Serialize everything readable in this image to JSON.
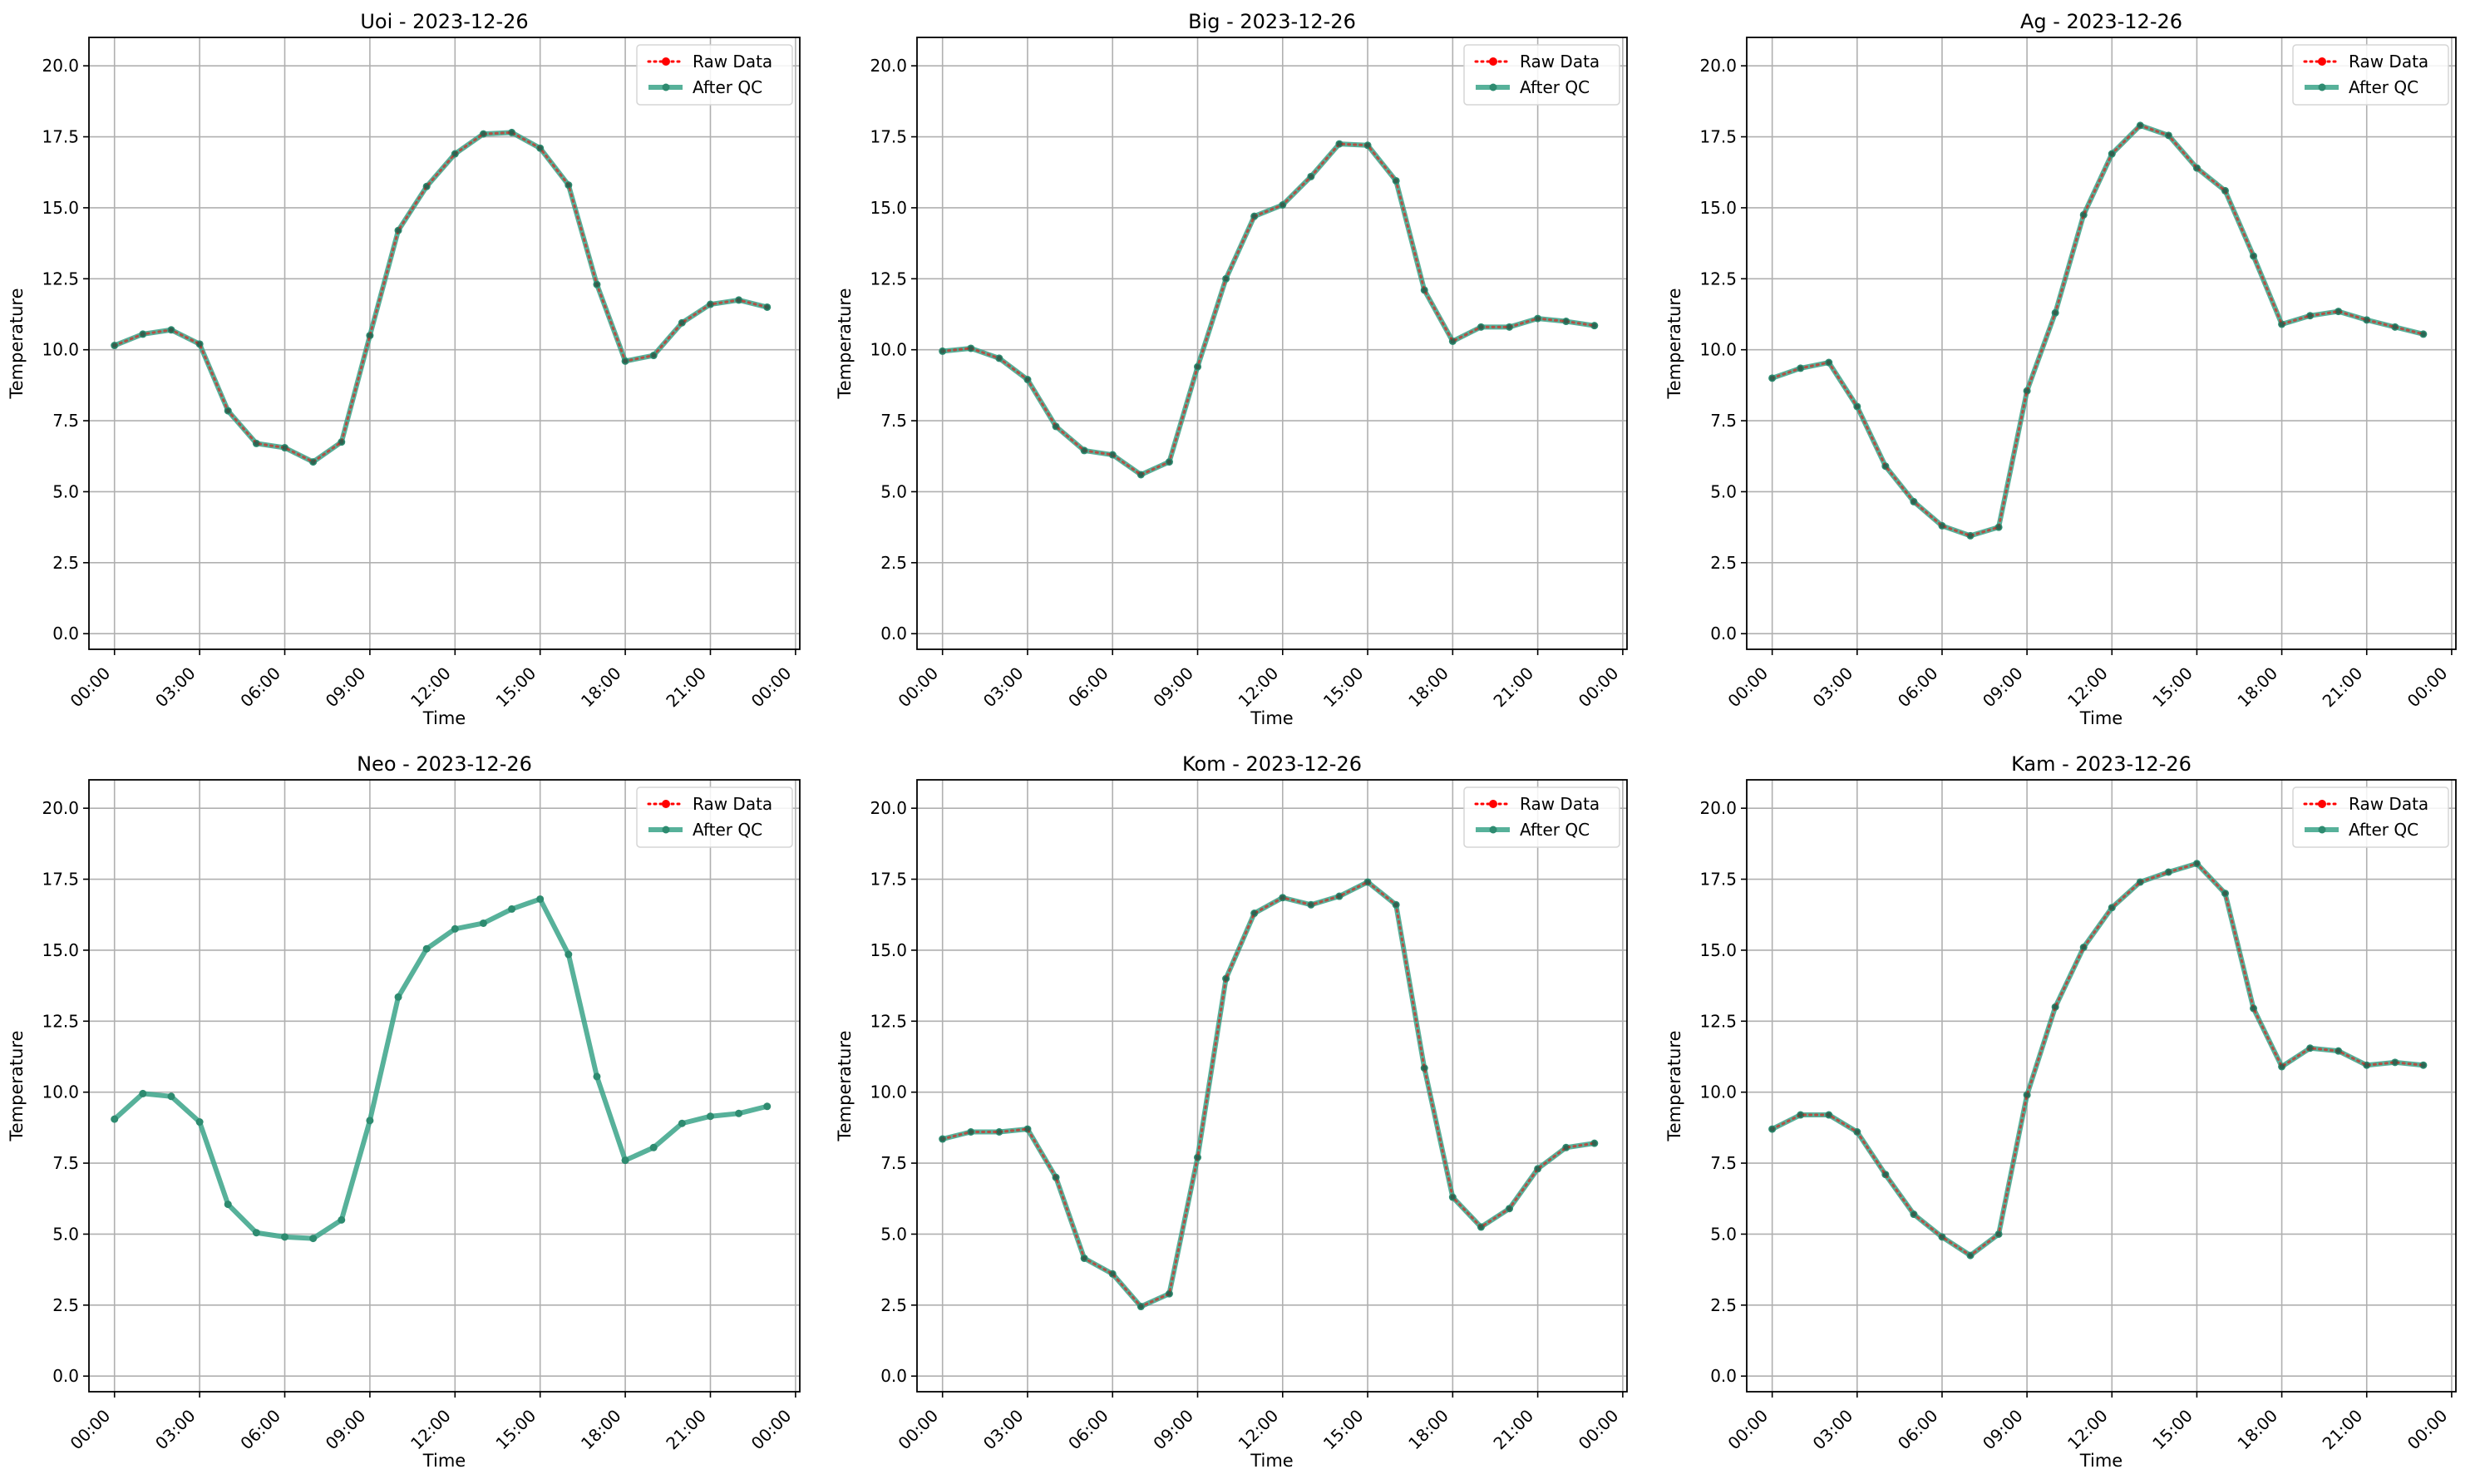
{
  "figure": {
    "background": "#ffffff"
  },
  "legend_labels": {
    "raw": "Raw Data",
    "qc": "After QC"
  },
  "styles": {
    "raw_color": "#ff0000",
    "qc_color": "#3aa388",
    "grid_color": "#b0b0b0"
  },
  "chart_data": [
    {
      "type": "line",
      "title": "Uoi - 2023-12-26",
      "xlabel": "Time",
      "ylabel": "Temperature",
      "x_ticks": [
        "00:00",
        "03:00",
        "06:00",
        "09:00",
        "12:00",
        "15:00",
        "18:00",
        "21:00",
        "00:00"
      ],
      "y_ticks": [
        "0.0",
        "2.5",
        "5.0",
        "7.5",
        "10.0",
        "12.5",
        "15.0",
        "17.5",
        "20.0"
      ],
      "xlim": [
        -0.9,
        24.15
      ],
      "ylim": [
        -0.55,
        21.0
      ],
      "grid": true,
      "legend_position": "upper right",
      "x_hours": [
        0,
        1,
        2,
        3,
        4,
        5,
        6,
        7,
        8,
        9,
        10,
        11,
        12,
        13,
        14,
        15,
        16,
        17,
        18,
        19,
        20,
        21,
        22,
        23
      ],
      "series": [
        {
          "name": "Raw Data",
          "values": [
            10.15,
            10.55,
            10.7,
            10.2,
            7.85,
            6.7,
            6.55,
            6.05,
            6.75,
            10.5,
            14.2,
            15.75,
            16.9,
            17.6,
            17.65,
            17.1,
            15.8,
            12.3,
            9.6,
            9.8,
            10.95,
            11.6,
            11.75,
            11.5
          ]
        },
        {
          "name": "After QC",
          "values": [
            10.15,
            10.55,
            10.7,
            10.2,
            7.85,
            6.7,
            6.55,
            6.05,
            6.75,
            10.5,
            14.2,
            15.75,
            16.9,
            17.6,
            17.65,
            17.1,
            15.8,
            12.3,
            9.6,
            9.8,
            10.95,
            11.6,
            11.75,
            11.5
          ]
        }
      ]
    },
    {
      "type": "line",
      "title": "Big - 2023-12-26",
      "xlabel": "Time",
      "ylabel": "Temperature",
      "x_ticks": [
        "00:00",
        "03:00",
        "06:00",
        "09:00",
        "12:00",
        "15:00",
        "18:00",
        "21:00",
        "00:00"
      ],
      "y_ticks": [
        "0.0",
        "2.5",
        "5.0",
        "7.5",
        "10.0",
        "12.5",
        "15.0",
        "17.5",
        "20.0"
      ],
      "xlim": [
        -0.9,
        24.15
      ],
      "ylim": [
        -0.55,
        21.0
      ],
      "grid": true,
      "legend_position": "upper right",
      "x_hours": [
        0,
        1,
        2,
        3,
        4,
        5,
        6,
        7,
        8,
        9,
        10,
        11,
        12,
        13,
        14,
        15,
        16,
        17,
        18,
        19,
        20,
        21,
        22,
        23
      ],
      "series": [
        {
          "name": "Raw Data",
          "values": [
            9.95,
            10.05,
            9.7,
            8.95,
            7.3,
            6.45,
            6.3,
            5.6,
            6.05,
            9.4,
            12.5,
            14.7,
            15.1,
            16.1,
            17.25,
            17.2,
            15.95,
            12.1,
            10.3,
            10.8,
            10.8,
            11.1,
            11.0,
            10.85
          ]
        },
        {
          "name": "After QC",
          "values": [
            9.95,
            10.05,
            9.7,
            8.95,
            7.3,
            6.45,
            6.3,
            5.6,
            6.05,
            9.4,
            12.5,
            14.7,
            15.1,
            16.1,
            17.25,
            17.2,
            15.95,
            12.1,
            10.3,
            10.8,
            10.8,
            11.1,
            11.0,
            10.85
          ]
        }
      ]
    },
    {
      "type": "line",
      "title": "Ag - 2023-12-26",
      "xlabel": "Time",
      "ylabel": "Temperature",
      "x_ticks": [
        "00:00",
        "03:00",
        "06:00",
        "09:00",
        "12:00",
        "15:00",
        "18:00",
        "21:00",
        "00:00"
      ],
      "y_ticks": [
        "0.0",
        "2.5",
        "5.0",
        "7.5",
        "10.0",
        "12.5",
        "15.0",
        "17.5",
        "20.0"
      ],
      "xlim": [
        -0.9,
        24.15
      ],
      "ylim": [
        -0.55,
        21.0
      ],
      "grid": true,
      "legend_position": "upper right",
      "x_hours": [
        0,
        1,
        2,
        3,
        4,
        5,
        6,
        7,
        8,
        9,
        10,
        11,
        12,
        13,
        14,
        15,
        16,
        17,
        18,
        19,
        20,
        21,
        22,
        23
      ],
      "series": [
        {
          "name": "Raw Data",
          "values": [
            9.0,
            9.35,
            9.55,
            8.0,
            5.9,
            4.65,
            3.8,
            3.45,
            3.75,
            8.55,
            11.3,
            14.75,
            16.9,
            17.9,
            17.55,
            16.4,
            15.6,
            13.3,
            10.9,
            11.2,
            11.35,
            11.05,
            10.8,
            10.55
          ]
        },
        {
          "name": "After QC",
          "values": [
            9.0,
            9.35,
            9.55,
            8.0,
            5.9,
            4.65,
            3.8,
            3.45,
            3.75,
            8.55,
            11.3,
            14.75,
            16.9,
            17.9,
            17.55,
            16.4,
            15.6,
            13.3,
            10.9,
            11.2,
            11.35,
            11.05,
            10.8,
            10.55
          ]
        }
      ]
    },
    {
      "type": "line",
      "title": "Neo - 2023-12-26",
      "xlabel": "Time",
      "ylabel": "Temperature",
      "x_ticks": [
        "00:00",
        "03:00",
        "06:00",
        "09:00",
        "12:00",
        "15:00",
        "18:00",
        "21:00",
        "00:00"
      ],
      "y_ticks": [
        "0.0",
        "2.5",
        "5.0",
        "7.5",
        "10.0",
        "12.5",
        "15.0",
        "17.5",
        "20.0"
      ],
      "xlim": [
        -0.9,
        24.15
      ],
      "ylim": [
        -0.55,
        21.0
      ],
      "grid": true,
      "legend_position": "upper right",
      "x_hours": [
        0,
        1,
        2,
        3,
        4,
        5,
        6,
        7,
        8,
        9,
        10,
        11,
        12,
        13,
        14,
        15,
        16,
        17,
        18,
        19,
        20,
        21,
        22,
        23
      ],
      "series": [
        {
          "name": "Raw Data",
          "values": []
        },
        {
          "name": "After QC",
          "values": [
            9.05,
            9.95,
            9.85,
            8.95,
            6.05,
            5.05,
            4.9,
            4.85,
            5.5,
            9.0,
            13.35,
            15.05,
            15.75,
            15.95,
            16.45,
            16.8,
            14.85,
            10.55,
            7.6,
            8.05,
            8.9,
            9.15,
            9.25,
            9.5
          ]
        }
      ]
    },
    {
      "type": "line",
      "title": "Kom - 2023-12-26",
      "xlabel": "Time",
      "ylabel": "Temperature",
      "x_ticks": [
        "00:00",
        "03:00",
        "06:00",
        "09:00",
        "12:00",
        "15:00",
        "18:00",
        "21:00",
        "00:00"
      ],
      "y_ticks": [
        "0.0",
        "2.5",
        "5.0",
        "7.5",
        "10.0",
        "12.5",
        "15.0",
        "17.5",
        "20.0"
      ],
      "xlim": [
        -0.9,
        24.15
      ],
      "ylim": [
        -0.55,
        21.0
      ],
      "grid": true,
      "legend_position": "upper right",
      "x_hours": [
        0,
        1,
        2,
        3,
        4,
        5,
        6,
        7,
        8,
        9,
        10,
        11,
        12,
        13,
        14,
        15,
        16,
        17,
        18,
        19,
        20,
        21,
        22,
        23
      ],
      "series": [
        {
          "name": "Raw Data",
          "values": [
            8.35,
            8.6,
            8.6,
            8.7,
            7.0,
            4.15,
            3.6,
            2.45,
            2.9,
            7.7,
            14.0,
            16.3,
            16.85,
            16.6,
            16.9,
            17.4,
            16.6,
            10.85,
            6.3,
            5.25,
            5.9,
            7.3,
            8.05,
            8.2
          ]
        },
        {
          "name": "After QC",
          "values": [
            8.35,
            8.6,
            8.6,
            8.7,
            7.0,
            4.15,
            3.6,
            2.45,
            2.9,
            7.7,
            14.0,
            16.3,
            16.85,
            16.6,
            16.9,
            17.4,
            16.6,
            10.85,
            6.3,
            5.25,
            5.9,
            7.3,
            8.05,
            8.2
          ]
        }
      ]
    },
    {
      "type": "line",
      "title": "Kam - 2023-12-26",
      "xlabel": "Time",
      "ylabel": "Temperature",
      "x_ticks": [
        "00:00",
        "03:00",
        "06:00",
        "09:00",
        "12:00",
        "15:00",
        "18:00",
        "21:00",
        "00:00"
      ],
      "y_ticks": [
        "0.0",
        "2.5",
        "5.0",
        "7.5",
        "10.0",
        "12.5",
        "15.0",
        "17.5",
        "20.0"
      ],
      "xlim": [
        -0.9,
        24.15
      ],
      "ylim": [
        -0.55,
        21.0
      ],
      "grid": true,
      "legend_position": "upper right",
      "x_hours": [
        0,
        1,
        2,
        3,
        4,
        5,
        6,
        7,
        8,
        9,
        10,
        11,
        12,
        13,
        14,
        15,
        16,
        17,
        18,
        19,
        20,
        21,
        22,
        23
      ],
      "series": [
        {
          "name": "Raw Data",
          "values": [
            8.7,
            9.2,
            9.2,
            8.6,
            7.1,
            5.7,
            4.9,
            4.25,
            5.0,
            9.9,
            13.0,
            15.1,
            16.5,
            17.4,
            17.75,
            18.05,
            17.0,
            12.95,
            10.9,
            11.55,
            11.45,
            10.95,
            11.05,
            10.95
          ]
        },
        {
          "name": "After QC",
          "values": [
            8.7,
            9.2,
            9.2,
            8.6,
            7.1,
            5.7,
            4.9,
            4.25,
            5.0,
            9.9,
            13.0,
            15.1,
            16.5,
            17.4,
            17.75,
            18.05,
            17.0,
            12.95,
            10.9,
            11.55,
            11.45,
            10.95,
            11.05,
            10.95
          ]
        }
      ]
    }
  ]
}
